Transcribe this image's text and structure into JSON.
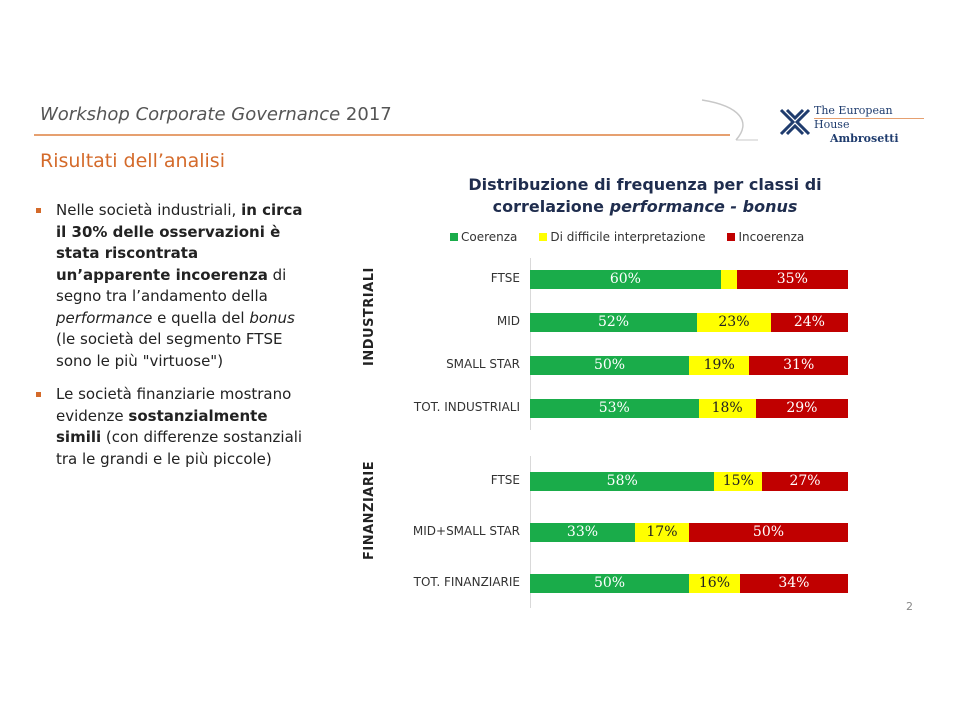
{
  "header": {
    "title_italic": "Workshop Corporate Governance",
    "title_year": " 2017"
  },
  "logo": {
    "line1": "The European House",
    "line2": "Ambrosetti"
  },
  "subtitle": "Risultati dell’analisi",
  "bullets": [
    {
      "parts": [
        {
          "t": "Nelle società industriali, ",
          "s": ""
        },
        {
          "t": "in circa il 30% delle osservazioni è stata riscontrata un’apparente incoerenza",
          "s": "b"
        },
        {
          "t": " di segno tra l’andamento della ",
          "s": ""
        },
        {
          "t": "performance",
          "s": "i"
        },
        {
          "t": " e quella del ",
          "s": ""
        },
        {
          "t": "bonus",
          "s": "i"
        },
        {
          "t": " (le società del segmento FTSE sono le più \"virtuose\")",
          "s": ""
        }
      ]
    },
    {
      "parts": [
        {
          "t": "Le società finanziarie mostrano evidenze ",
          "s": ""
        },
        {
          "t": "sostanzialmente simili",
          "s": "b"
        },
        {
          "t": " (con differenze sostanziali tra le grandi e le più piccole)",
          "s": ""
        }
      ]
    }
  ],
  "page_number": "2",
  "colors": {
    "coerenza": "#1aac4a",
    "difficile": "#ffff00",
    "incoerenza": "#c00000",
    "accent": "#d46a2a"
  },
  "chart_data": {
    "type": "bar",
    "orientation": "horizontal",
    "stacked": true,
    "title_line1": "Distribuzione di frequenza per classi di",
    "title_line2_prefix": "correlazione ",
    "title_line2_italic": "performance - bonus",
    "legend": [
      "Coerenza",
      "Di difficile interpretazione",
      "Incoerenza"
    ],
    "groups": [
      {
        "name": "INDUSTRIALI",
        "categories": [
          {
            "label": "FTSE",
            "values": [
              60,
              5,
              35
            ],
            "labels": [
              "60%",
              "",
              "35%"
            ]
          },
          {
            "label": "MID",
            "values": [
              52,
              23,
              24
            ],
            "labels": [
              "52%",
              "23%",
              "24%"
            ]
          },
          {
            "label": "SMALL STAR",
            "values": [
              50,
              19,
              31
            ],
            "labels": [
              "50%",
              "19%",
              "31%"
            ]
          },
          {
            "label": "TOT. INDUSTRIALI",
            "values": [
              53,
              18,
              29
            ],
            "labels": [
              "53%",
              "18%",
              "29%"
            ]
          }
        ]
      },
      {
        "name": "FINANZIARIE",
        "categories": [
          {
            "label": "FTSE",
            "values": [
              58,
              15,
              27
            ],
            "labels": [
              "58%",
              "15%",
              "27%"
            ]
          },
          {
            "label": "MID+SMALL STAR",
            "values": [
              33,
              17,
              50
            ],
            "labels": [
              "33%",
              "17%",
              "50%"
            ]
          },
          {
            "label": "TOT.  FINANZIARIE",
            "values": [
              50,
              16,
              34
            ],
            "labels": [
              "50%",
              "16%",
              "34%"
            ]
          }
        ]
      }
    ],
    "xlim": [
      0,
      100
    ]
  }
}
